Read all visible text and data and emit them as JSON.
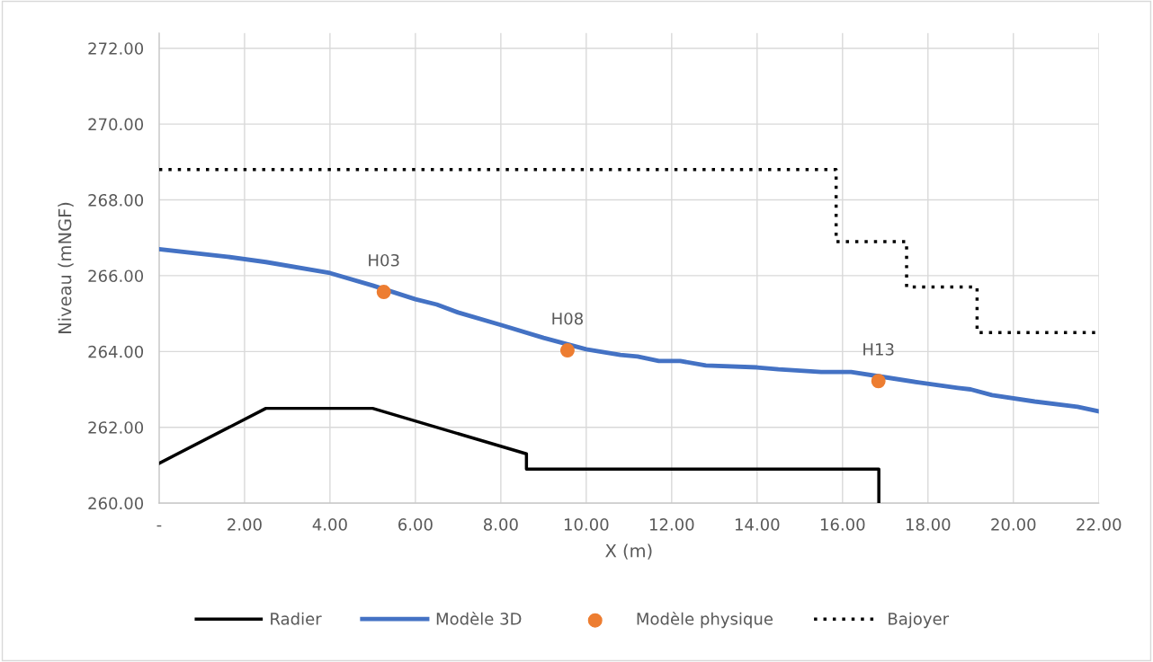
{
  "chart_data": {
    "type": "line",
    "xlabel": "X (m)",
    "ylabel": "Niveau (mNGF)",
    "xlim": [
      0,
      22
    ],
    "ylim": [
      260,
      272.4
    ],
    "xticks": [
      {
        "value": 0,
        "label": "-"
      },
      {
        "value": 2,
        "label": "2.00"
      },
      {
        "value": 4,
        "label": "4.00"
      },
      {
        "value": 6,
        "label": "6.00"
      },
      {
        "value": 8,
        "label": "8.00"
      },
      {
        "value": 10,
        "label": "10.00"
      },
      {
        "value": 12,
        "label": "12.00"
      },
      {
        "value": 14,
        "label": "14.00"
      },
      {
        "value": 16,
        "label": "16.00"
      },
      {
        "value": 18,
        "label": "18.00"
      },
      {
        "value": 20,
        "label": "20.00"
      },
      {
        "value": 22,
        "label": "22.00"
      }
    ],
    "yticks": [
      {
        "value": 260,
        "label": "260.00"
      },
      {
        "value": 262,
        "label": "262.00"
      },
      {
        "value": 264,
        "label": "264.00"
      },
      {
        "value": 266,
        "label": "266.00"
      },
      {
        "value": 268,
        "label": "268.00"
      },
      {
        "value": 270,
        "label": "270.00"
      },
      {
        "value": 272,
        "label": "272.00"
      }
    ],
    "grid": true,
    "legend": "bottom",
    "series": [
      {
        "name": "Radier",
        "color": "#000000",
        "line_style": "solid",
        "x": [
          0,
          2.5,
          5,
          8.6,
          8.6,
          16.85,
          16.85
        ],
        "values": [
          261.05,
          262.5,
          262.5,
          261.3,
          260.9,
          260.9,
          260
        ]
      },
      {
        "name": "Modèle 3D",
        "color": "#4472c4",
        "line_style": "solid",
        "x": [
          0,
          1.6,
          2.5,
          4,
          5,
          6,
          6.5,
          7,
          8,
          9,
          10,
          10.8,
          11.2,
          11.7,
          12.2,
          12.8,
          14,
          14.5,
          15.5,
          16.2,
          17,
          17.8,
          18.7,
          19,
          19.5,
          20.5,
          21.5,
          22
        ],
        "values": [
          266.7,
          266.5,
          266.36,
          266.07,
          265.74,
          265.38,
          265.24,
          265.03,
          264.7,
          264.36,
          264.06,
          263.91,
          263.87,
          263.75,
          263.75,
          263.63,
          263.58,
          263.53,
          263.46,
          263.46,
          263.32,
          263.18,
          263.04,
          263.0,
          262.85,
          262.68,
          262.54,
          262.42
        ]
      },
      {
        "name": "Modèle physique",
        "type": "scatter",
        "color": "#ed7d31",
        "marker": "circle",
        "x": [
          5.26,
          9.56,
          16.84
        ],
        "values": [
          265.57,
          264.03,
          263.22
        ],
        "value_labels": [
          "H03",
          "H08",
          "H13"
        ]
      },
      {
        "name": "Bajoyer",
        "color": "#000000",
        "line_style": "dotted",
        "x": [
          0,
          15.85,
          15.85,
          17.5,
          17.5,
          19.15,
          19.15,
          22
        ],
        "values": [
          268.8,
          268.8,
          266.9,
          266.9,
          265.7,
          265.7,
          264.5,
          264.5
        ]
      }
    ]
  }
}
